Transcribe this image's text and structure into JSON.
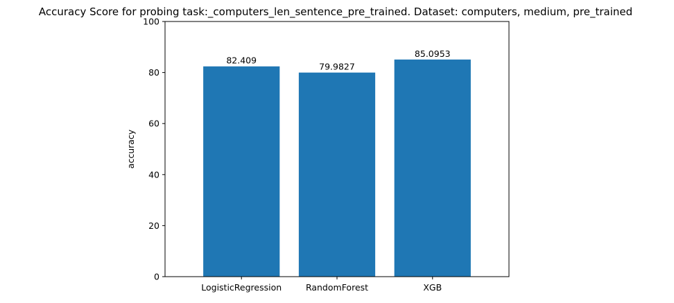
{
  "chart_data": {
    "type": "bar",
    "title": "Accuracy Score for probing task:_computers_len_sentence_pre_trained. Dataset: computers, medium, pre_trained",
    "xlabel": "",
    "ylabel": "accuracy",
    "categories": [
      "LogisticRegression",
      "RandomForest",
      "XGB"
    ],
    "values": [
      82.409,
      79.9827,
      85.0953
    ],
    "value_labels": [
      "82.409",
      "79.9827",
      "85.0953"
    ],
    "ylim": [
      0,
      100
    ],
    "yticks": [
      0,
      20,
      40,
      60,
      80,
      100
    ],
    "grid": false,
    "bar_color": "#1f77b4"
  }
}
